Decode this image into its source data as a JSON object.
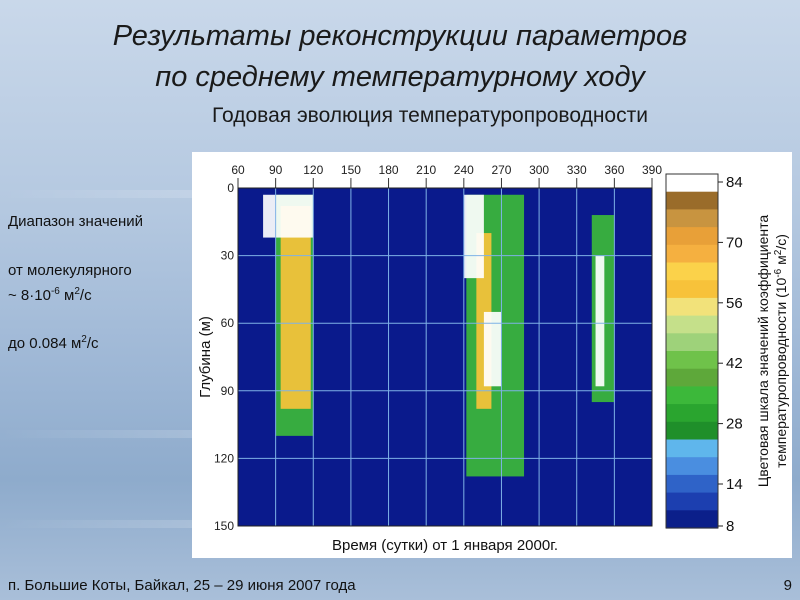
{
  "title_line1": "Результаты реконструкции параметров",
  "title_line2": "по среднему температурному ходу",
  "subtitle": "Годовая эволюция температуропроводности",
  "side": {
    "line1": "Диапазон значений",
    "line2": "от молекулярного",
    "line3_prefix": "~ 8·10",
    "line3_sup": "-6",
    "line3_unit": " м",
    "line3_unit_sup": "2",
    "line3_tail": "/с",
    "line4_prefix": "до 0.084 м",
    "line4_sup": "2",
    "line4_tail": "/с"
  },
  "footer": "п. Большие Коты, Байкал,  25 – 29 июня 2007  года",
  "page_number": "9",
  "colors": {
    "background_field": "#0a1a8c",
    "grid": "#7fb2e6"
  },
  "chart_data": {
    "type": "heatmap",
    "xlabel": "Время (сутки) от 1 января 2000г.",
    "ylabel": "Глубина (м)",
    "x_ticks": [
      60,
      90,
      120,
      150,
      180,
      210,
      240,
      270,
      300,
      330,
      360,
      390
    ],
    "y_ticks": [
      0,
      30,
      60,
      90,
      120,
      150
    ],
    "xlim": [
      60,
      390
    ],
    "ylim": [
      0,
      150
    ],
    "colorbar": {
      "label_line1": "Цветовая шкала значений коэффициента",
      "label_line2": "температуропроводности (10",
      "label_sup1": "-6",
      "label_mid": " м",
      "label_sup2": "2",
      "label_tail": "/с)",
      "ticks": [
        84,
        70,
        56,
        42,
        28,
        14,
        8
      ],
      "colors": [
        "#0b1f8a",
        "#1c3fb0",
        "#2f63c8",
        "#4a8ee0",
        "#5fb6ec",
        "#1f8f2a",
        "#2aa52f",
        "#3cb83a",
        "#5ea83a",
        "#6fc24a",
        "#9ed27a",
        "#c5e08a",
        "#f2e27a",
        "#f7c23a",
        "#fbd24a",
        "#f5b040",
        "#e8a038",
        "#c89440",
        "#9a6c2a",
        "#ffffff"
      ]
    },
    "patches": [
      {
        "x": 90,
        "x2": 120,
        "d1": 3,
        "d2": 110,
        "color": "#3cb83a"
      },
      {
        "x": 94,
        "x2": 118,
        "d1": 8,
        "d2": 98,
        "color": "#f7c23a"
      },
      {
        "x": 80,
        "x2": 120,
        "d1": 3,
        "d2": 22,
        "color": "#ffffff"
      },
      {
        "x": 242,
        "x2": 288,
        "d1": 3,
        "d2": 128,
        "color": "#3cb83a"
      },
      {
        "x": 250,
        "x2": 262,
        "d1": 20,
        "d2": 98,
        "color": "#f7c23a"
      },
      {
        "x": 240,
        "x2": 256,
        "d1": 3,
        "d2": 40,
        "color": "#ffffff"
      },
      {
        "x": 256,
        "x2": 270,
        "d1": 55,
        "d2": 88,
        "color": "#ffffff"
      },
      {
        "x": 342,
        "x2": 360,
        "d1": 12,
        "d2": 95,
        "color": "#3cb83a"
      },
      {
        "x": 345,
        "x2": 352,
        "d1": 30,
        "d2": 88,
        "color": "#ffffff"
      }
    ]
  }
}
